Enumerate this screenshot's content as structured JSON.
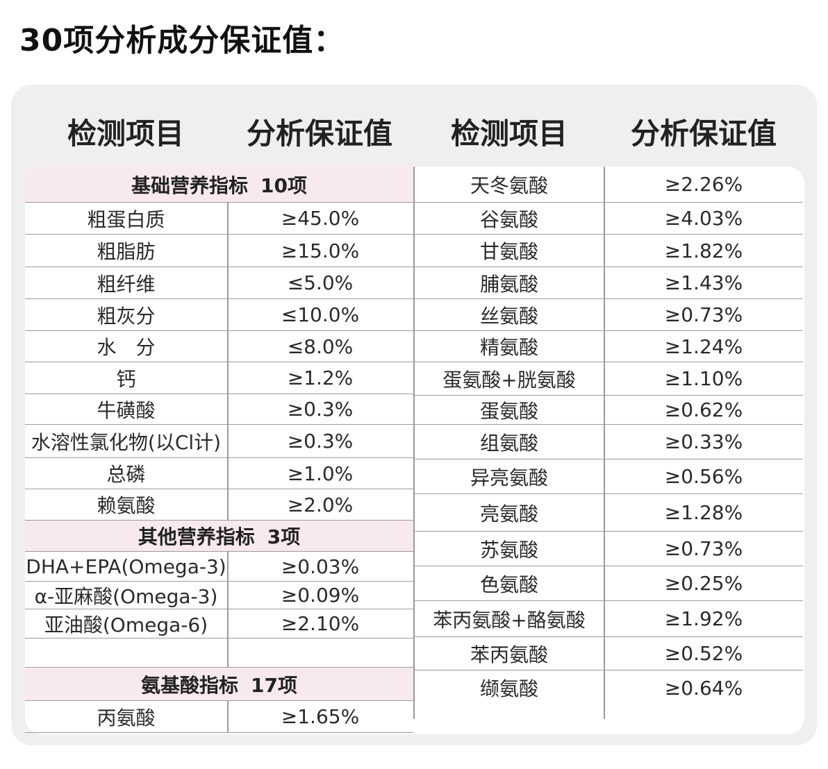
{
  "title": "30项分析成分保证值：",
  "headers": {
    "left_item": "检测项目",
    "left_value": "分析保证值",
    "right_item": "检测项目",
    "right_value": "分析保证值"
  },
  "sections": {
    "basic": {
      "name": "基础营养指标",
      "count": "10项"
    },
    "other": {
      "name": "其他营养指标",
      "count": "3项"
    },
    "amino": {
      "name": "氨基酸指标",
      "count": "17项"
    }
  },
  "left_rows": [
    {
      "item": "粗蛋白质",
      "value": "≥45.0%"
    },
    {
      "item": "粗脂肪",
      "value": "≥15.0%"
    },
    {
      "item": "粗纤维",
      "value": "≤5.0%"
    },
    {
      "item": "粗灰分",
      "value": "≤10.0%"
    },
    {
      "item": "水　分",
      "value": "≤8.0%"
    },
    {
      "item": "钙",
      "value": "≥1.2%"
    },
    {
      "item": "牛磺酸",
      "value": "≥0.3%"
    },
    {
      "item": "水溶性氯化物(以Cl计)",
      "value": "≥0.3%"
    },
    {
      "item": "总磷",
      "value": "≥1.0%"
    },
    {
      "item": "赖氨酸",
      "value": "≥2.0%"
    },
    {
      "item": "DHA+EPA(Omega-3)",
      "value": "≥0.03%"
    },
    {
      "item": "α-亚麻酸(Omega-3)",
      "value": "≥0.09%"
    },
    {
      "item": "亚油酸(Omega-6)",
      "value": "≥2.10%"
    },
    {
      "item": "丙氨酸",
      "value": "≥1.65%"
    }
  ],
  "right_rows": [
    {
      "item": "天冬氨酸",
      "value": "≥2.26%"
    },
    {
      "item": "谷氨酸",
      "value": "≥4.03%"
    },
    {
      "item": "甘氨酸",
      "value": "≥1.82%"
    },
    {
      "item": "脯氨酸",
      "value": "≥1.43%"
    },
    {
      "item": "丝氨酸",
      "value": "≥0.73%"
    },
    {
      "item": "精氨酸",
      "value": "≥1.24%"
    },
    {
      "item": "蛋氨酸+胱氨酸",
      "value": "≥1.10%"
    },
    {
      "item": "蛋氨酸",
      "value": "≥0.62%"
    },
    {
      "item": "组氨酸",
      "value": "≥0.33%"
    },
    {
      "item": "异亮氨酸",
      "value": "≥0.56%"
    },
    {
      "item": "亮氨酸",
      "value": "≥1.28%"
    },
    {
      "item": "苏氨酸",
      "value": "≥0.73%"
    },
    {
      "item": "色氨酸",
      "value": "≥0.25%"
    },
    {
      "item": "苯丙氨酸+酪氨酸",
      "value": "≥1.92%"
    },
    {
      "item": "苯丙氨酸",
      "value": "≥0.52%"
    },
    {
      "item": "缬氨酸",
      "value": "≥0.64%"
    }
  ]
}
